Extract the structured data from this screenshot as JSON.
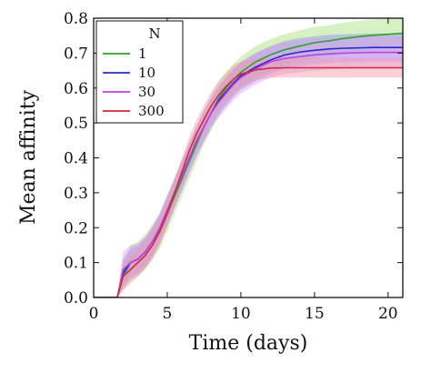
{
  "chart_data": {
    "type": "line",
    "title": "",
    "xlabel": "Time (days)",
    "ylabel": "Mean affinity",
    "xlim": [
      0,
      21
    ],
    "ylim": [
      0,
      0.8
    ],
    "xticks": [
      0,
      5,
      10,
      15,
      20
    ],
    "yticks": [
      0.0,
      0.1,
      0.2,
      0.3,
      0.4,
      0.5,
      0.6,
      0.7,
      0.8
    ],
    "xtick_labels": [
      "0",
      "5",
      "10",
      "15",
      "20"
    ],
    "ytick_labels": [
      "0.0",
      "0.1",
      "0.2",
      "0.3",
      "0.4",
      "0.5",
      "0.6",
      "0.7",
      "0.8"
    ],
    "legend": {
      "title": "N",
      "position": "top-left"
    },
    "x": [
      0,
      1.6,
      2,
      2.5,
      3,
      3.5,
      4,
      4.5,
      5,
      5.5,
      6,
      6.5,
      7,
      7.5,
      8,
      8.5,
      9,
      9.5,
      10,
      11,
      12,
      13,
      14,
      15,
      16,
      17,
      18,
      19,
      20,
      21
    ],
    "series": [
      {
        "name": "1",
        "color": "#2ca02c",
        "band_color": "#a8e07a",
        "values": [
          0,
          0,
          0.06,
          0.1,
          0.11,
          0.13,
          0.16,
          0.19,
          0.24,
          0.29,
          0.34,
          0.39,
          0.44,
          0.49,
          0.53,
          0.57,
          0.6,
          0.625,
          0.645,
          0.675,
          0.695,
          0.71,
          0.72,
          0.73,
          0.735,
          0.742,
          0.747,
          0.751,
          0.754,
          0.757
        ],
        "spread": [
          0,
          0,
          0.04,
          0.05,
          0.05,
          0.05,
          0.05,
          0.05,
          0.05,
          0.05,
          0.05,
          0.05,
          0.05,
          0.05,
          0.05,
          0.05,
          0.045,
          0.045,
          0.045,
          0.045,
          0.045,
          0.045,
          0.045,
          0.045,
          0.045,
          0.045,
          0.045,
          0.045,
          0.045,
          0.045
        ]
      },
      {
        "name": "10",
        "color": "#2a2ad0",
        "band_color": "#8b8bf0",
        "values": [
          0,
          0,
          0.07,
          0.1,
          0.11,
          0.13,
          0.16,
          0.2,
          0.25,
          0.3,
          0.35,
          0.4,
          0.45,
          0.49,
          0.53,
          0.565,
          0.59,
          0.615,
          0.635,
          0.66,
          0.68,
          0.695,
          0.703,
          0.708,
          0.712,
          0.714,
          0.715,
          0.716,
          0.716,
          0.716
        ],
        "spread": [
          0,
          0,
          0.04,
          0.04,
          0.04,
          0.04,
          0.04,
          0.04,
          0.04,
          0.04,
          0.04,
          0.04,
          0.04,
          0.04,
          0.04,
          0.04,
          0.04,
          0.04,
          0.04,
          0.04,
          0.04,
          0.04,
          0.04,
          0.04,
          0.04,
          0.04,
          0.04,
          0.04,
          0.04,
          0.04
        ]
      },
      {
        "name": "30",
        "color": "#c040e0",
        "band_color": "#e39af5",
        "values": [
          0,
          0,
          0.08,
          0.1,
          0.11,
          0.13,
          0.16,
          0.2,
          0.25,
          0.3,
          0.35,
          0.4,
          0.45,
          0.49,
          0.53,
          0.56,
          0.585,
          0.61,
          0.63,
          0.655,
          0.675,
          0.685,
          0.69,
          0.695,
          0.698,
          0.7,
          0.701,
          0.702,
          0.702,
          0.702
        ],
        "spread": [
          0,
          0,
          0.05,
          0.05,
          0.045,
          0.045,
          0.045,
          0.045,
          0.045,
          0.045,
          0.045,
          0.045,
          0.045,
          0.045,
          0.045,
          0.045,
          0.045,
          0.045,
          0.045,
          0.045,
          0.045,
          0.045,
          0.045,
          0.045,
          0.045,
          0.045,
          0.045,
          0.045,
          0.045,
          0.045
        ]
      },
      {
        "name": "300",
        "color": "#d62738",
        "band_color": "#f29aa5",
        "values": [
          0,
          0,
          0.06,
          0.08,
          0.1,
          0.12,
          0.15,
          0.19,
          0.24,
          0.3,
          0.36,
          0.42,
          0.47,
          0.51,
          0.55,
          0.58,
          0.605,
          0.625,
          0.64,
          0.652,
          0.657,
          0.658,
          0.658,
          0.658,
          0.658,
          0.658,
          0.658,
          0.658,
          0.658,
          0.658
        ],
        "spread": [
          0,
          0,
          0.04,
          0.04,
          0.04,
          0.04,
          0.04,
          0.04,
          0.04,
          0.04,
          0.04,
          0.04,
          0.04,
          0.04,
          0.04,
          0.04,
          0.04,
          0.04,
          0.035,
          0.03,
          0.028,
          0.028,
          0.028,
          0.028,
          0.028,
          0.028,
          0.028,
          0.028,
          0.028,
          0.028
        ]
      }
    ]
  }
}
